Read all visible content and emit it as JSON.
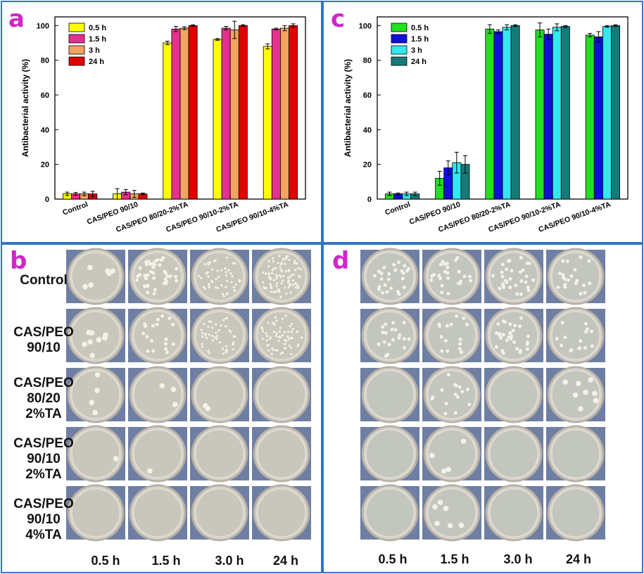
{
  "panels": {
    "a": "a",
    "c": "c",
    "b": "b",
    "d": "d"
  },
  "colors": {
    "frame": "#2f78c0",
    "letter": "#d026c8",
    "plate_bg": "#6f7fa3",
    "a_series": [
      "#ffff00",
      "#e6308f",
      "#f4a360",
      "#e00000"
    ],
    "c_series": [
      "#22e022",
      "#1010d8",
      "#33e8ee",
      "#157a78"
    ]
  },
  "chart_data": [
    {
      "type": "bar",
      "panel": "a",
      "categories": [
        "Control",
        "CAS/PEO 90/10",
        "CAS/PEO 80/20-2%TA",
        "CAS/PEO 90/10-2%TA",
        "CAS/PEO 90/10-4%TA"
      ],
      "series": [
        {
          "name": "0.5 h",
          "values": [
            3,
            3,
            90,
            92,
            88
          ],
          "errors": [
            1,
            3,
            1,
            0.5,
            1.5
          ]
        },
        {
          "name": "1.5 h",
          "values": [
            3,
            4,
            98,
            98.5,
            98
          ],
          "errors": [
            0.8,
            1.5,
            1.5,
            1,
            0.5
          ]
        },
        {
          "name": "3 h",
          "values": [
            3,
            3,
            98.5,
            97.5,
            98.5
          ],
          "errors": [
            1,
            2,
            0.8,
            5,
            1.5
          ]
        },
        {
          "name": "24 h",
          "values": [
            3,
            3,
            100,
            100,
            100
          ],
          "errors": [
            1.5,
            0.5,
            0.5,
            0.5,
            1
          ]
        }
      ],
      "xlabel": "",
      "ylabel": "Antibacterial activity (%)",
      "ylim": [
        0,
        105
      ],
      "yticks": [
        "0",
        "20",
        "40",
        "60",
        "80",
        "100"
      ],
      "legend": "top-left"
    },
    {
      "type": "bar",
      "panel": "c",
      "categories": [
        "Control",
        "CAS/PEO 90/10",
        "CAS/PEO 80/20-2%TA",
        "CAS/PEO 90/10-2%TA",
        "CAS/PEO 90/10-4%TA"
      ],
      "series": [
        {
          "name": "0.5 h",
          "values": [
            3,
            12,
            98,
            97.5,
            94.5
          ],
          "errors": [
            1,
            4,
            2.5,
            4,
            1
          ]
        },
        {
          "name": "1.5 h",
          "values": [
            3,
            18,
            96.5,
            95,
            93.5
          ],
          "errors": [
            0.5,
            4,
            1,
            3,
            3
          ]
        },
        {
          "name": "3 h",
          "values": [
            3,
            21,
            99,
            99,
            99.5
          ],
          "errors": [
            1,
            6,
            1.5,
            2,
            0.5
          ]
        },
        {
          "name": "24 h",
          "values": [
            3,
            20,
            100,
            99.5,
            100
          ],
          "errors": [
            1,
            5,
            0.5,
            0.5,
            0.5
          ]
        }
      ],
      "xlabel": "",
      "ylabel": "Antibacterial activity (%)",
      "ylim": [
        0,
        105
      ],
      "yticks": [
        "0",
        "20",
        "40",
        "60",
        "80",
        "100"
      ],
      "legend": "top-left"
    }
  ],
  "plates_b": {
    "row_labels": [
      "Control",
      "CAS/PEO\n90/10",
      "CAS/PEO\n80/20\n2%TA",
      "CAS/PEO\n90/10\n2%TA",
      "CAS/PEO\n90/10\n4%TA"
    ],
    "time_labels": [
      "0.5 h",
      "1.5 h",
      "3.0 h",
      "24 h"
    ],
    "colony_density": [
      [
        6,
        40,
        50,
        90
      ],
      [
        8,
        18,
        45,
        60
      ],
      [
        4,
        3,
        2,
        0
      ],
      [
        1,
        1,
        0,
        0
      ],
      [
        0,
        0,
        0,
        0
      ]
    ]
  },
  "plates_d": {
    "time_labels": [
      "0.5 h",
      "1.5 h",
      "3.0 h",
      "24 h"
    ],
    "colony_density": [
      [
        25,
        25,
        30,
        20
      ],
      [
        20,
        15,
        30,
        15
      ],
      [
        0,
        15,
        0,
        8
      ],
      [
        0,
        4,
        0,
        0
      ],
      [
        0,
        6,
        0,
        0
      ]
    ]
  }
}
